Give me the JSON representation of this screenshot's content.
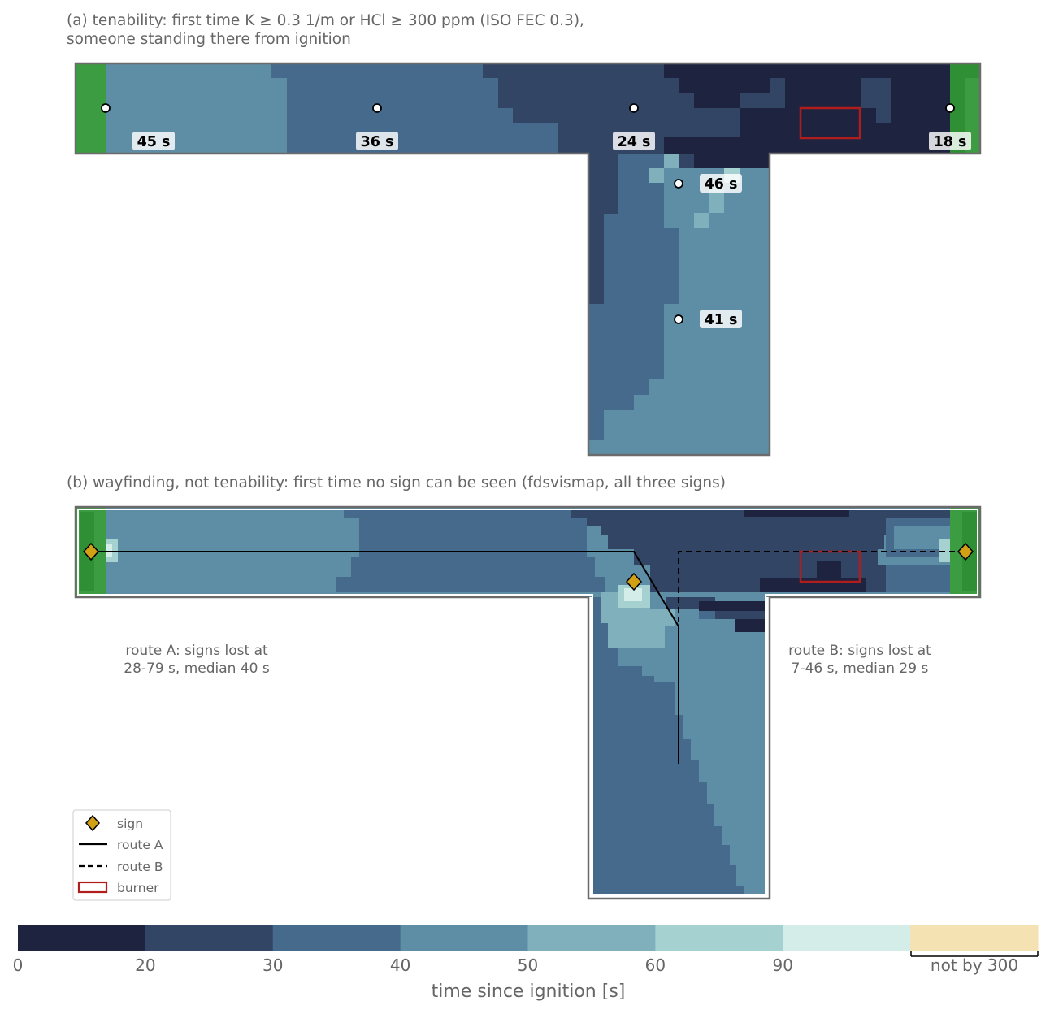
{
  "chart_data": [
    {
      "type": "heatmap",
      "panel": "a",
      "title_line1": "(a) tenability: first time K ≥ 0.3 1/m or HCl ≥ 300 ppm (ISO FEC 0.3),",
      "title_line2": "someone standing there from ignition",
      "point_labels": [
        {
          "label": "45 s",
          "value": 45
        },
        {
          "label": "36 s",
          "value": 36
        },
        {
          "label": "24 s",
          "value": 24
        },
        {
          "label": "18 s",
          "value": 18
        },
        {
          "label": "46 s",
          "value": 46
        },
        {
          "label": "41 s",
          "value": 41
        }
      ],
      "burner_shown": true
    },
    {
      "type": "heatmap",
      "panel": "b",
      "title": "(b) wayfinding, not tenability: first time no sign can be seen (fdsvismap, all three signs)",
      "route_a_note_1": "route A: signs lost at",
      "route_a_note_2": "28-79 s, median 40 s",
      "route_a": {
        "signs_lost_range_s": [
          28,
          79
        ],
        "median_s": 40
      },
      "route_b_note_1": "route B: signs lost at",
      "route_b_note_2": "7-46 s, median 29 s",
      "route_b": {
        "signs_lost_range_s": [
          7,
          46
        ],
        "median_s": 29
      },
      "legend": {
        "position": "lower-left",
        "items": [
          "sign",
          "route A",
          "route B",
          "burner"
        ]
      }
    }
  ],
  "colorbar": {
    "label": "time since ignition [s]",
    "boundaries": [
      0,
      20,
      30,
      40,
      50,
      60,
      90
    ],
    "tick_labels": [
      "0",
      "20",
      "30",
      "40",
      "50",
      "60",
      "90"
    ],
    "extra_label": "not by 300",
    "colors": [
      "#1e233f",
      "#324564",
      "#466a8b",
      "#5e8ea6",
      "#80b0bc",
      "#a6d1d1",
      "#d4ede8",
      "#f4e2b3"
    ]
  },
  "colors": {
    "exit_green": "#3c9c41",
    "burner_red": "#b11d1d",
    "sign_gold": "#d2a015",
    "outline": "#6b6b6b"
  }
}
